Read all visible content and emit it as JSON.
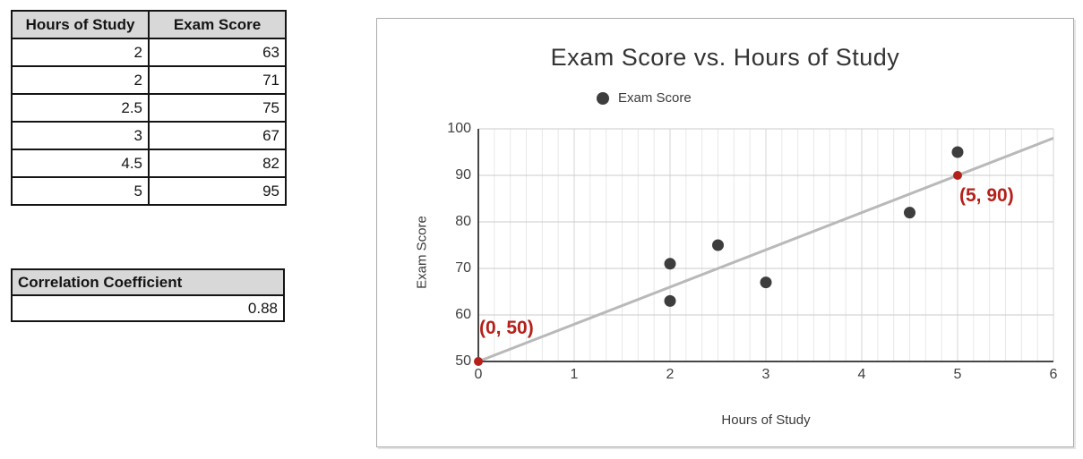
{
  "tables": {
    "study": {
      "columns": [
        "Hours of Study",
        "Exam Score"
      ],
      "rows": [
        [
          "2",
          "63"
        ],
        [
          "2",
          "71"
        ],
        [
          "2.5",
          "75"
        ],
        [
          "3",
          "67"
        ],
        [
          "4.5",
          "82"
        ],
        [
          "5",
          "95"
        ]
      ]
    },
    "correlation": {
      "header": "Correlation Coefficient",
      "value": "0.88"
    }
  },
  "chart_data": {
    "type": "scatter",
    "title": "Exam Score vs. Hours of Study",
    "legend": {
      "label": "Exam Score",
      "position": "top"
    },
    "xlabel": "Hours of Study",
    "ylabel": "Exam Score",
    "xlim": [
      0,
      6
    ],
    "ylim": [
      50,
      100
    ],
    "x_ticks": [
      0,
      1,
      2,
      3,
      4,
      5,
      6
    ],
    "y_ticks": [
      50,
      60,
      70,
      80,
      90,
      100
    ],
    "grid": {
      "horizontal": "major-only",
      "vertical_minor_divisions_per_unit": 6
    },
    "series": [
      {
        "name": "Exam Score",
        "points": [
          [
            2,
            63
          ],
          [
            2,
            71
          ],
          [
            2.5,
            75
          ],
          [
            3,
            67
          ],
          [
            4.5,
            82
          ],
          [
            5,
            95
          ]
        ]
      }
    ],
    "trendline": {
      "from": [
        0,
        50
      ],
      "to": [
        6,
        98
      ]
    },
    "annotations": [
      {
        "text": "(0, 50)",
        "point": [
          0,
          50
        ],
        "placement": "above-right"
      },
      {
        "text": "(5, 90)",
        "point": [
          5,
          90
        ],
        "placement": "below-right"
      }
    ]
  },
  "colors": {
    "point": "#3d3d3d",
    "accent_red": "#b5201a",
    "trendline": "#b9b9b9",
    "axis": "#474747",
    "grid_major_h": "#cbcbcb",
    "grid_major_v": "#d6d6d6",
    "grid_minor_v": "#e8e8e8",
    "table_header_bg": "#d8d8d8",
    "title_text": "#333333"
  }
}
